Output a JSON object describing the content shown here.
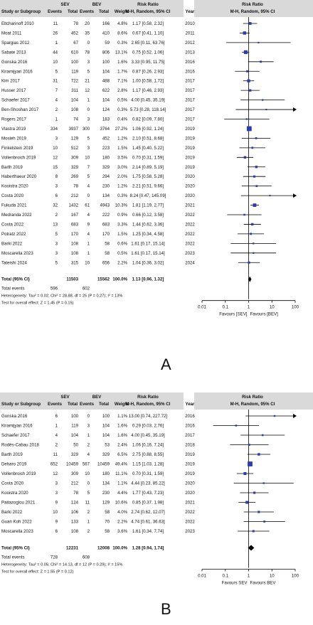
{
  "chart_data": [
    {
      "type": "forest",
      "panel_label": "A",
      "header": {
        "study_col": "Study or Subgroup",
        "group1": "SEV",
        "group2": "BEV",
        "events": "Events",
        "total": "Total",
        "weight": "Weight",
        "effect_title": "Risk Ratio",
        "effect_sub": "M-H, Random, 95% CI",
        "year": "Year",
        "plot_title": "Risk Ratio",
        "plot_sub": "M-H, Random, 95% CI"
      },
      "studies": [
        {
          "name": "Eltcharinoff 2010",
          "e1": "11",
          "n1": "78",
          "e2": "20",
          "n2": "166",
          "w": "4.8%",
          "rr": 1.17,
          "lo": 0.58,
          "hi": 2.32,
          "ci": "1.17 [0.58, 2.32]",
          "year": "2010"
        },
        {
          "name": "Moat 2011",
          "e1": "26",
          "n1": "452",
          "e2": "35",
          "n2": "410",
          "w": "8.6%",
          "rr": 0.67,
          "lo": 0.41,
          "hi": 1.1,
          "ci": "0.67 [0.41, 1.10]",
          "year": "2011"
        },
        {
          "name": "Spargias 2012",
          "e1": "1",
          "n1": "67",
          "e2": "0",
          "n2": "59",
          "w": "0.3%",
          "rr": 2.65,
          "lo": 0.11,
          "hi": 63.76,
          "ci": "2.65 [0.11, 63.76]",
          "year": "2012"
        },
        {
          "name": "Sabate 2013",
          "e1": "44",
          "n1": "610",
          "e2": "78",
          "n2": "806",
          "w": "13.1%",
          "rr": 0.75,
          "lo": 0.52,
          "hi": 1.06,
          "ci": "0.75 [0.52, 1.06]",
          "year": "2013"
        },
        {
          "name": "Gonska 2016",
          "e1": "10",
          "n1": "100",
          "e2": "3",
          "n2": "100",
          "w": "1.6%",
          "rr": 3.33,
          "lo": 0.95,
          "hi": 11.75,
          "ci": "3.33 [0.95, 11.75]",
          "year": "2016"
        },
        {
          "name": "Kiramijyan 2016",
          "e1": "5",
          "n1": "119",
          "e2": "5",
          "n2": "104",
          "w": "1.7%",
          "rr": 0.87,
          "lo": 0.26,
          "hi": 2.93,
          "ci": "0.87 [0.26, 2.93]",
          "year": "2016"
        },
        {
          "name": "Kim 2017",
          "e1": "31",
          "n1": "722",
          "e2": "21",
          "n2": "488",
          "w": "7.1%",
          "rr": 1.0,
          "lo": 0.58,
          "hi": 1.72,
          "ci": "1.00 [0.58, 1.72]",
          "year": "2017"
        },
        {
          "name": "Husser 2017",
          "e1": "7",
          "n1": "311",
          "e2": "12",
          "n2": "622",
          "w": "2.8%",
          "rr": 1.17,
          "lo": 0.46,
          "hi": 2.93,
          "ci": "1.17 [0.46, 2.93]",
          "year": "2017"
        },
        {
          "name": "Schaefer 2017",
          "e1": "4",
          "n1": "104",
          "e2": "1",
          "n2": "104",
          "w": "0.5%",
          "rr": 4.0,
          "lo": 0.45,
          "hi": 35.19,
          "ci": "4.00 [0.45, 35.19]",
          "year": "2017"
        },
        {
          "name": "Ben-Shoshan 2017",
          "e1": "2",
          "n1": "108",
          "e2": "0",
          "n2": "124",
          "w": "0.3%",
          "rr": 5.73,
          "lo": 0.28,
          "hi": 118.14,
          "ci": "5.73 [0.28, 118.14]",
          "year": "2017"
        },
        {
          "name": "Rogers 2017",
          "e1": "1",
          "n1": "74",
          "e2": "3",
          "n2": "183",
          "w": "0.4%",
          "rr": 0.82,
          "lo": 0.09,
          "hi": 7.8,
          "ci": "0.82 [0.09, 7.80]",
          "year": "2017"
        },
        {
          "name": "Vlastra 2019",
          "e1": "334",
          "n1": "3937",
          "e2": "300",
          "n2": "3764",
          "w": "27.2%",
          "rr": 1.06,
          "lo": 0.92,
          "hi": 1.24,
          "ci": "1.06 [0.92, 1.24]",
          "year": "2019"
        },
        {
          "name": "Mosleh 2019",
          "e1": "3",
          "n1": "129",
          "e2": "5",
          "n2": "452",
          "w": "1.2%",
          "rr": 2.1,
          "lo": 0.51,
          "hi": 8.68,
          "ci": "2.10 [0.51, 8.68]",
          "year": "2019"
        },
        {
          "name": "Finkelstein 2019",
          "e1": "10",
          "n1": "512",
          "e2": "3",
          "n2": "223",
          "w": "1.5%",
          "rr": 1.45,
          "lo": 0.4,
          "hi": 5.22,
          "ci": "1.45 [0.40, 5.22]",
          "year": "2019"
        },
        {
          "name": "Vollenbroich 2019",
          "e1": "12",
          "n1": "309",
          "e2": "10",
          "n2": "180",
          "w": "3.5%",
          "rr": 0.7,
          "lo": 0.31,
          "hi": 1.59,
          "ci": "0.70 [0.31, 1.59]",
          "year": "2019"
        },
        {
          "name": "Barth 2019",
          "e1": "15",
          "n1": "329",
          "e2": "7",
          "n2": "329",
          "w": "3.0%",
          "rr": 2.14,
          "lo": 0.89,
          "hi": 5.19,
          "ci": "2.14 [0.89, 5.19]",
          "year": "2019"
        },
        {
          "name": "Haberthaeur 2020",
          "e1": "8",
          "n1": "269",
          "e2": "5",
          "n2": "294",
          "w": "2.0%",
          "rr": 1.75,
          "lo": 0.58,
          "hi": 5.28,
          "ci": "1.75 [0.58, 5.28]",
          "year": "2020"
        },
        {
          "name": "Kooistra 2020",
          "e1": "3",
          "n1": "78",
          "e2": "4",
          "n2": "230",
          "w": "1.2%",
          "rr": 2.21,
          "lo": 0.51,
          "hi": 9.66,
          "ci": "2.21 [0.51, 9.66]",
          "year": "2020"
        },
        {
          "name": "Costa 2020",
          "e1": "6",
          "n1": "212",
          "e2": "0",
          "n2": "134",
          "w": "0.3%",
          "rr": 8.24,
          "lo": 0.47,
          "hi": 145.09,
          "ci": "8.24 [0.47, 145.09]",
          "year": "2020"
        },
        {
          "name": "Fukuda 2021",
          "e1": "32",
          "n1": "1432",
          "e2": "61",
          "n2": "4943",
          "w": "10.3%",
          "rr": 1.81,
          "lo": 1.19,
          "hi": 2.77,
          "ci": "1.81 [1.19, 2.77]",
          "year": "2021"
        },
        {
          "name": "Medranda 2022",
          "e1": "2",
          "n1": "167",
          "e2": "4",
          "n2": "222",
          "w": "0.9%",
          "rr": 0.66,
          "lo": 0.12,
          "hi": 3.58,
          "ci": "0.66 [0.12, 3.58]",
          "year": "2022"
        },
        {
          "name": "Costa 2022",
          "e1": "13",
          "n1": "683",
          "e2": "9",
          "n2": "683",
          "w": "3.3%",
          "rr": 1.44,
          "lo": 0.62,
          "hi": 3.36,
          "ci": "1.44 [0.62, 3.36]",
          "year": "2022"
        },
        {
          "name": "Potratz 2022",
          "e1": "5",
          "n1": "170",
          "e2": "4",
          "n2": "170",
          "w": "1.5%",
          "rr": 1.25,
          "lo": 0.34,
          "hi": 4.58,
          "ci": "1.25 [0.34, 4.58]",
          "year": "2022"
        },
        {
          "name": "Barki 2022",
          "e1": "3",
          "n1": "108",
          "e2": "1",
          "n2": "58",
          "w": "0.6%",
          "rr": 1.61,
          "lo": 0.17,
          "hi": 15.14,
          "ci": "1.61 [0.17, 15.14]",
          "year": "2022"
        },
        {
          "name": "Moscarella 2023",
          "e1": "3",
          "n1": "108",
          "e2": "1",
          "n2": "58",
          "w": "0.5%",
          "rr": 1.61,
          "lo": 0.17,
          "hi": 15.14,
          "ci": "1.61 [0.17, 15.14]",
          "year": "2023"
        },
        {
          "name": "Tateishi 2024",
          "e1": "5",
          "n1": "315",
          "e2": "10",
          "n2": "656",
          "w": "2.2%",
          "rr": 1.04,
          "lo": 0.36,
          "hi": 3.02,
          "ci": "1.04 [0.36, 3.02]",
          "year": "2024"
        }
      ],
      "total": {
        "label": "Total (95% CI)",
        "n1": "11503",
        "n2": "15562",
        "w": "100.0%",
        "rr": 1.13,
        "lo": 0.96,
        "hi": 1.32,
        "ci": "1.13 [0.96, 1.32]"
      },
      "total_events": {
        "label": "Total events",
        "e1": "596",
        "e2": "602"
      },
      "heterogeneity": "Heterogeneity: Tau² = 0.02; Chi² = 28.88, df = 25 (P = 0.27); I² = 13%",
      "overall_effect": "Test for overall effect: Z = 1.45 (P = 0.15)",
      "axis": {
        "scale": "log",
        "range": [
          0.01,
          100
        ],
        "ticks": [
          "0.01",
          "0.1",
          "1",
          "10",
          "100"
        ],
        "left_label": "Favours [SEV]",
        "right_label": "Favours [BEV]"
      }
    },
    {
      "type": "forest",
      "panel_label": "B",
      "header": {
        "study_col": "Study or Subgroup",
        "group1": "SEV",
        "group2": "BEV",
        "events": "Events",
        "total": "Total",
        "weight": "Weight",
        "effect_title": "Risk Ratio",
        "effect_sub": "M-H, Random, 95% CI",
        "year": "Year",
        "plot_title": "Risk Ratio",
        "plot_sub": "M-H, Random, 95% CI"
      },
      "studies": [
        {
          "name": "Gonska 2016",
          "e1": "6",
          "n1": "100",
          "e2": "0",
          "n2": "100",
          "w": "1.1%",
          "rr": 13.0,
          "lo": 0.74,
          "hi": 227.72,
          "ci": "13.00 [0.74, 227.72]",
          "year": "2016"
        },
        {
          "name": "Kiramijyan 2016",
          "e1": "1",
          "n1": "119",
          "e2": "3",
          "n2": "104",
          "w": "1.6%",
          "rr": 0.29,
          "lo": 0.03,
          "hi": 2.76,
          "ci": "0.29 [0.03, 2.76]",
          "year": "2016"
        },
        {
          "name": "Schaefer 2017",
          "e1": "4",
          "n1": "104",
          "e2": "1",
          "n2": "104",
          "w": "1.6%",
          "rr": 4.0,
          "lo": 0.45,
          "hi": 35.19,
          "ci": "4.00 [0.45, 35.19]",
          "year": "2017"
        },
        {
          "name": "Rodés-Cabau 2018",
          "e1": "2",
          "n1": "50",
          "e2": "2",
          "n2": "53",
          "w": "2.4%",
          "rr": 1.06,
          "lo": 0.16,
          "hi": 7.24,
          "ci": "1.06 [0.16, 7.24]",
          "year": "2018"
        },
        {
          "name": "Barth 2019",
          "e1": "11",
          "n1": "329",
          "e2": "4",
          "n2": "329",
          "w": "6.5%",
          "rr": 2.75,
          "lo": 0.88,
          "hi": 8.55,
          "ci": "2.75 [0.88, 8.55]",
          "year": "2019"
        },
        {
          "name": "Deharo 2019",
          "e1": "652",
          "n1": "10459",
          "e2": "567",
          "n2": "10459",
          "w": "49.4%",
          "rr": 1.15,
          "lo": 1.03,
          "hi": 1.28,
          "ci": "1.15 [1.03, 1.28]",
          "year": "2019"
        },
        {
          "name": "Vollenbroich 2019",
          "e1": "12",
          "n1": "309",
          "e2": "10",
          "n2": "180",
          "w": "11.1%",
          "rr": 0.7,
          "lo": 0.31,
          "hi": 1.59,
          "ci": "0.70 [0.31, 1.59]",
          "year": "2019"
        },
        {
          "name": "Costa 2020",
          "e1": "3",
          "n1": "212",
          "e2": "0",
          "n2": "134",
          "w": "1.1%",
          "rr": 4.44,
          "lo": 0.23,
          "hi": 85.22,
          "ci": "4.44 [0.23, 85.22]",
          "year": "2020"
        },
        {
          "name": "Kooistra 2020",
          "e1": "3",
          "n1": "78",
          "e2": "5",
          "n2": "230",
          "w": "4.4%",
          "rr": 1.77,
          "lo": 0.43,
          "hi": 7.23,
          "ci": "1.77 [0.43, 7.23]",
          "year": "2020"
        },
        {
          "name": "Paitazoglou 2021",
          "e1": "9",
          "n1": "124",
          "e2": "11",
          "n2": "129",
          "w": "10.6%",
          "rr": 0.85,
          "lo": 0.37,
          "hi": 1.98,
          "ci": "0.85 [0.37, 1.98]",
          "year": "2021"
        },
        {
          "name": "Barki 2022",
          "e1": "10",
          "n1": "106",
          "e2": "2",
          "n2": "58",
          "w": "4.0%",
          "rr": 2.74,
          "lo": 0.62,
          "hi": 12.07,
          "ci": "2.74 [0.62, 12.07]",
          "year": "2022"
        },
        {
          "name": "Guan Koh 2022",
          "e1": "9",
          "n1": "133",
          "e2": "1",
          "n2": "70",
          "w": "2.2%",
          "rr": 4.74,
          "lo": 0.61,
          "hi": 36.63,
          "ci": "4.74 [0.61, 36.63]",
          "year": "2022"
        },
        {
          "name": "Moscarella 2023",
          "e1": "6",
          "n1": "108",
          "e2": "2",
          "n2": "58",
          "w": "3.6%",
          "rr": 1.61,
          "lo": 0.34,
          "hi": 7.74,
          "ci": "1.61 [0.34, 7.74]",
          "year": "2023"
        }
      ],
      "total": {
        "label": "Total (95% CI)",
        "n1": "12231",
        "n2": "12008",
        "w": "100.0%",
        "rr": 1.28,
        "lo": 0.94,
        "hi": 1.74,
        "ci": "1.28 [0.94, 1.74]"
      },
      "total_events": {
        "label": "Total events",
        "e1": "728",
        "e2": "608"
      },
      "heterogeneity": "Heterogeneity: Tau² = 0.05; Chi² = 14.13, df = 12 (P = 0.29); I² = 15%",
      "overall_effect": "Test for overall effect: Z = 1.55 (P = 0.12)",
      "axis": {
        "scale": "log",
        "range": [
          0.01,
          100
        ],
        "ticks": [
          "0.01",
          "0.1",
          "1",
          "10",
          "100"
        ],
        "left_label": "Favours SEV",
        "right_label": "Favours BEV"
      }
    }
  ],
  "colors": {
    "header_bg": "#d9d9d9",
    "square": "#2a3bb5",
    "text": "#111111",
    "line": "#000000"
  }
}
